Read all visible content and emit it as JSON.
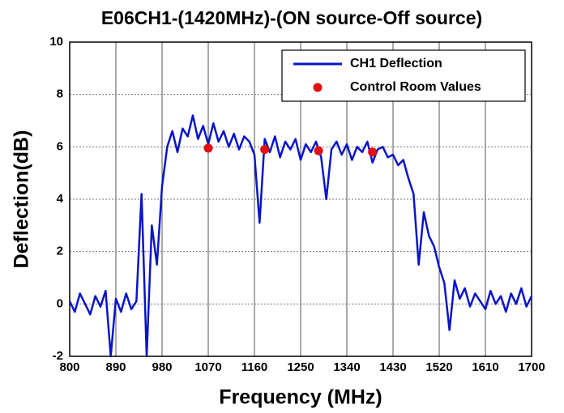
{
  "chart_data": {
    "type": "line",
    "title": "E06CH1-(1420MHz)-(ON source-Off source)",
    "xlabel": "Frequency (MHz)",
    "ylabel": "Deflection(dB)",
    "xlim": [
      800,
      1700
    ],
    "ylim": [
      -2,
      10
    ],
    "xticks": [
      800,
      890,
      980,
      1070,
      1160,
      1250,
      1340,
      1430,
      1520,
      1610,
      1700
    ],
    "yticks": [
      -2,
      0,
      2,
      4,
      6,
      8,
      10
    ],
    "grid": true,
    "legend": "upper right",
    "series": [
      {
        "name": "CH1 Deflection",
        "color": "#0a14c8",
        "type": "line",
        "x": [
          800,
          810,
          820,
          830,
          840,
          850,
          860,
          870,
          880,
          890,
          900,
          910,
          920,
          930,
          940,
          950,
          960,
          970,
          980,
          990,
          1000,
          1010,
          1020,
          1030,
          1040,
          1050,
          1060,
          1070,
          1080,
          1090,
          1100,
          1110,
          1120,
          1130,
          1140,
          1150,
          1160,
          1170,
          1180,
          1190,
          1200,
          1210,
          1220,
          1230,
          1240,
          1250,
          1260,
          1270,
          1280,
          1290,
          1300,
          1310,
          1320,
          1330,
          1340,
          1350,
          1360,
          1370,
          1380,
          1390,
          1400,
          1410,
          1420,
          1430,
          1440,
          1450,
          1460,
          1470,
          1480,
          1490,
          1500,
          1510,
          1520,
          1530,
          1540,
          1550,
          1560,
          1570,
          1580,
          1590,
          1600,
          1610,
          1620,
          1630,
          1640,
          1650,
          1660,
          1670,
          1680,
          1690,
          1700
        ],
        "values": [
          0.1,
          -0.3,
          0.4,
          0.0,
          -0.4,
          0.3,
          -0.1,
          0.5,
          -2.0,
          0.2,
          -0.3,
          0.4,
          -0.2,
          0.1,
          4.2,
          -2.0,
          3.0,
          1.5,
          4.5,
          6.0,
          6.6,
          5.8,
          6.7,
          6.4,
          7.2,
          6.3,
          6.8,
          6.1,
          6.9,
          6.2,
          6.6,
          6.0,
          6.5,
          5.9,
          6.4,
          6.2,
          5.7,
          3.1,
          6.3,
          5.8,
          6.4,
          5.6,
          6.2,
          5.9,
          6.3,
          5.5,
          6.1,
          5.8,
          6.2,
          5.6,
          4.0,
          5.9,
          6.2,
          5.7,
          6.1,
          5.5,
          6.0,
          5.8,
          6.2,
          5.4,
          5.9,
          6.0,
          5.6,
          5.7,
          5.3,
          5.5,
          4.8,
          4.2,
          1.5,
          3.5,
          2.6,
          2.2,
          1.4,
          0.8,
          -1.0,
          0.9,
          0.2,
          0.6,
          -0.1,
          0.4,
          0.1,
          -0.2,
          0.5,
          0.0,
          0.3,
          -0.3,
          0.4,
          0.0,
          0.6,
          -0.1,
          0.3
        ]
      },
      {
        "name": "Control Room Values",
        "color": "#e01010",
        "type": "scatter",
        "x": [
          1070,
          1180,
          1285,
          1390
        ],
        "values": [
          5.95,
          5.9,
          5.85,
          5.8
        ]
      }
    ]
  }
}
